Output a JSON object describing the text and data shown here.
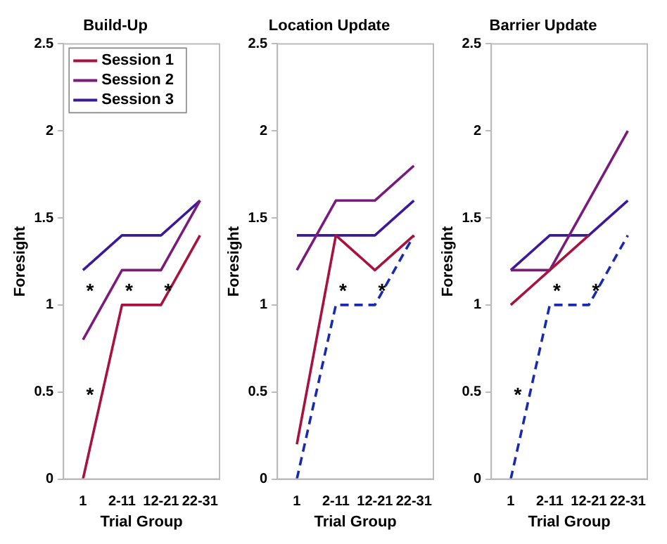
{
  "chart_data": [
    {
      "type": "line",
      "title": "Build-Up",
      "xlabel": "Trial Group",
      "ylabel": "Foresight",
      "categories": [
        "1",
        "2-11",
        "12-21",
        "22-31"
      ],
      "ylim": [
        0,
        2.5
      ],
      "yticks": [
        0,
        0.5,
        1,
        1.5,
        2,
        2.5
      ],
      "legend": "top left",
      "series": [
        {
          "name": "Session 1",
          "color": "#a8123e",
          "values": [
            0,
            1,
            1,
            1.4
          ]
        },
        {
          "name": "Session 2",
          "color": "#7a1a7a",
          "values": [
            0.8,
            1.2,
            1.2,
            1.6
          ]
        },
        {
          "name": "Session 3",
          "color": "#3a1a9a",
          "values": [
            1.2,
            1.4,
            1.4,
            1.6
          ]
        }
      ],
      "annotations": [
        "*",
        "*",
        "*",
        "*"
      ]
    },
    {
      "type": "line",
      "title": "Location Update",
      "xlabel": "Trial Group",
      "ylabel": "Foresight",
      "categories": [
        "1",
        "2-11",
        "12-21",
        "22-31"
      ],
      "ylim": [
        0,
        2.5
      ],
      "yticks": [
        0,
        0.5,
        1,
        1.5,
        2,
        2.5
      ],
      "series": [
        {
          "color": "#a8123e",
          "values": [
            0.2,
            1.4,
            1.2,
            1.4
          ]
        },
        {
          "color": "#7a1a7a",
          "values": [
            1.2,
            1.6,
            1.6,
            1.8
          ]
        },
        {
          "color": "#3a1a9a",
          "values": [
            1.4,
            1.4,
            1.4,
            1.6
          ]
        },
        {
          "color": "#1a2ab0",
          "line_style": "dashed",
          "values": [
            0,
            1,
            1,
            1.4
          ]
        }
      ],
      "annotations": [
        "*",
        "*"
      ]
    },
    {
      "type": "line",
      "title": "Barrier Update",
      "xlabel": "Trial Group",
      "ylabel": "Foresight",
      "categories": [
        "1",
        "2-11",
        "12-21",
        "22-31"
      ],
      "ylim": [
        0,
        2.5
      ],
      "yticks": [
        0,
        0.5,
        1,
        1.5,
        2,
        2.5
      ],
      "series": [
        {
          "color": "#a8123e",
          "values": [
            1,
            1.2,
            1.4,
            null
          ]
        },
        {
          "color": "#7a1a7a",
          "values": [
            1.2,
            1.2,
            1.6,
            2
          ]
        },
        {
          "color": "#3a1a9a",
          "values": [
            1.2,
            1.4,
            1.4,
            1.6
          ]
        },
        {
          "color": "#1a2ab0",
          "line_style": "dashed",
          "values": [
            0,
            1,
            1,
            1.4
          ]
        }
      ],
      "annotations": [
        "*",
        "*",
        "*"
      ]
    }
  ]
}
